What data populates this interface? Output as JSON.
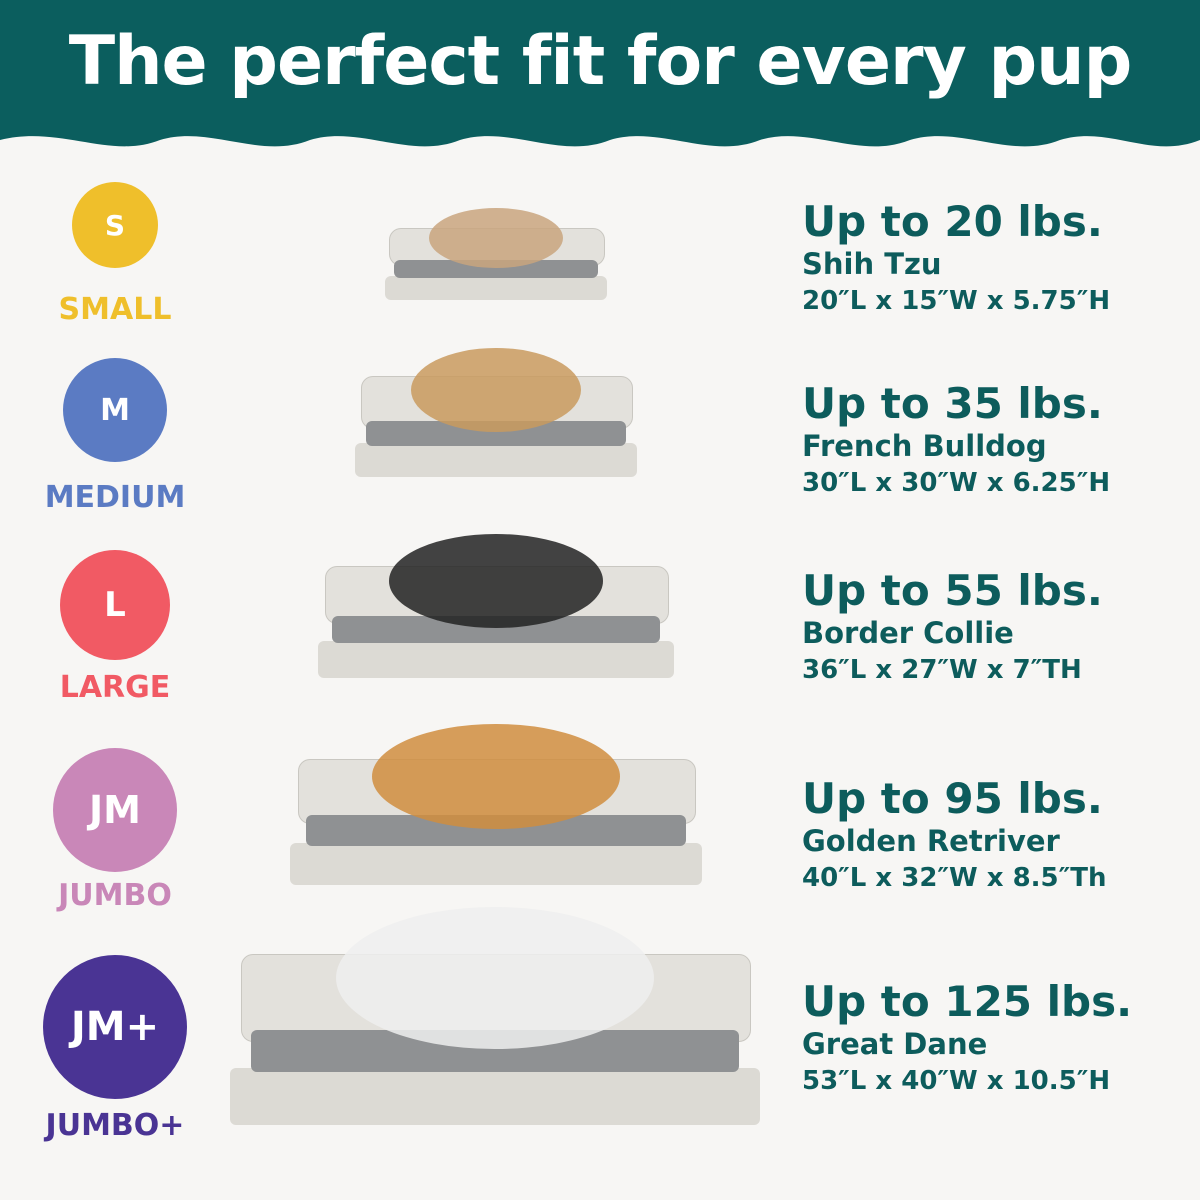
{
  "header": {
    "title": "The perfect fit for every pup",
    "background": "#0b5e5e"
  },
  "sizes": [
    {
      "code": "S",
      "label": "SMALL",
      "color": "#efbf2b",
      "weight": "Up to 20 lbs.",
      "breed": "Shih Tzu",
      "dimensions": "20″L x 15″W x 5.75″H"
    },
    {
      "code": "M",
      "label": "MEDIUM",
      "color": "#5b7bc3",
      "weight": "Up to 35 lbs.",
      "breed": "French Bulldog",
      "dimensions": "30″L x 30″W x 6.25″H"
    },
    {
      "code": "L",
      "label": "LARGE",
      "color": "#f15a64",
      "weight": "Up to 55 lbs.",
      "breed": "Border Collie",
      "dimensions": "36″L x 27″W x 7″TH"
    },
    {
      "code": "JM",
      "label": "JUMBO",
      "color": "#c987b8",
      "weight": "Up to 95 lbs.",
      "breed": "Golden Retriver",
      "dimensions": "40″L x 32″W x 8.5″Th"
    },
    {
      "code": "JM+",
      "label": "JUMBO+",
      "color": "#4a3494",
      "weight": "Up to 125 lbs.",
      "breed": "Great Dane",
      "dimensions": "53″L x 40″W x 10.5″H"
    }
  ],
  "text_color": "#0d5c5c"
}
